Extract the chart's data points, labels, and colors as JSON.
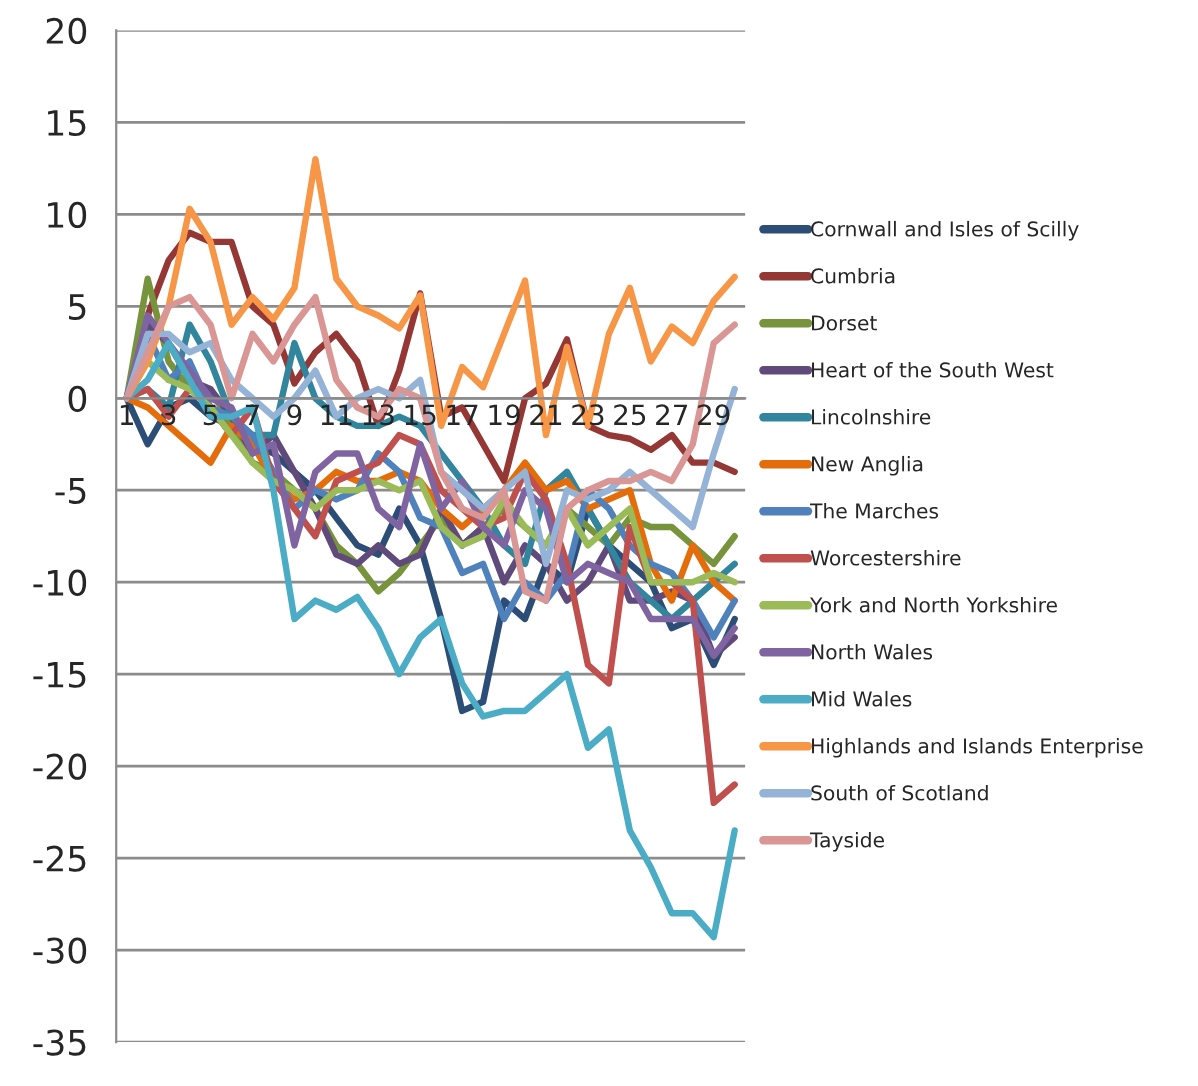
{
  "chart_data": {
    "type": "line",
    "categories": [
      "1",
      null,
      "3",
      null,
      "5",
      null,
      "7",
      null,
      "9",
      null,
      "11",
      null,
      "13",
      null,
      "15",
      null,
      "17",
      null,
      "19",
      null,
      "21",
      null,
      "23",
      null,
      "25",
      null,
      "27",
      null,
      "29",
      null
    ],
    "ylim": [
      -35,
      20
    ],
    "yticks": [
      -35,
      -30,
      -25,
      -20,
      -15,
      -10,
      -5,
      0,
      5,
      10,
      15,
      20
    ],
    "grid": "y",
    "legend": "right",
    "marker": "none",
    "line_style": "solid",
    "series": [
      {
        "name": "Cornwall and Isles of Scilly",
        "color": "#2c4d75",
        "values": [
          0,
          -2.5,
          -0.5,
          0,
          -1,
          -1.5,
          -2.5,
          -3,
          -4,
          -5,
          -6.5,
          -8,
          -8.5,
          -6,
          -8,
          -12,
          -17,
          -16.5,
          -11,
          -12,
          -9,
          -10,
          -6,
          -8,
          -9,
          -10,
          -12.5,
          -12,
          -14.5,
          -12
        ]
      },
      {
        "name": "Cumbria",
        "color": "#953735",
        "values": [
          0,
          4.5,
          7.5,
          9,
          8.5,
          8.5,
          5,
          4,
          0.8,
          2.5,
          3.5,
          2,
          -1.5,
          1.5,
          5.7,
          -1,
          -0.5,
          -2.5,
          -4.5,
          0,
          0.8,
          3.2,
          -1.5,
          -2,
          -2.2,
          -2.8,
          -2,
          -3.5,
          -3.5,
          -4
        ]
      },
      {
        "name": "Dorset",
        "color": "#77933c",
        "values": [
          0,
          6.5,
          2,
          0.5,
          0.5,
          -1.5,
          -3.5,
          -4,
          -5,
          -6,
          -8,
          -9,
          -10.5,
          -9.5,
          -8,
          -6.5,
          -8,
          -7,
          -6,
          -7,
          -8,
          -6,
          -7,
          -8,
          -6.5,
          -7,
          -7,
          -8,
          -9,
          -7.5
        ]
      },
      {
        "name": "Heart of the South West",
        "color": "#604a7b",
        "values": [
          0,
          4,
          3,
          1,
          0.5,
          -1,
          -3,
          -2,
          -4,
          -6,
          -8.5,
          -9,
          -8,
          -9,
          -8.5,
          -6,
          -8,
          -7,
          -10,
          -8,
          -9,
          -11,
          -10,
          -8,
          -11,
          -11,
          -10.5,
          -11,
          -14,
          -13
        ]
      },
      {
        "name": "Lincolnshire",
        "color": "#31859c",
        "values": [
          0,
          0.5,
          -0.5,
          4,
          2,
          -1,
          -2,
          -2,
          3,
          0,
          -1,
          -1.5,
          -1.5,
          -1,
          -1.5,
          -3,
          -4.5,
          -6,
          -8,
          -9,
          -5,
          -4,
          -6,
          -8,
          -10,
          -11,
          -12,
          -11,
          -10,
          -9
        ]
      },
      {
        "name": "New Anglia",
        "color": "#e46c0a",
        "values": [
          0,
          -0.5,
          -1.5,
          -2.5,
          -3.5,
          -1.5,
          -2.5,
          -4.5,
          -5.5,
          -5,
          -4,
          -4.5,
          -4.5,
          -4,
          -4.5,
          -6,
          -7,
          -6,
          -5,
          -3.5,
          -5,
          -4.5,
          -6,
          -5.5,
          -5,
          -9,
          -11,
          -8,
          -10,
          -11
        ]
      },
      {
        "name": "The Marches",
        "color": "#4f81bd",
        "values": [
          0,
          3.5,
          1,
          2,
          -0.5,
          -1,
          -2,
          -4,
          -6,
          -5,
          -5.5,
          -5,
          -3,
          -4,
          -6.5,
          -7,
          -9.5,
          -9,
          -12,
          -10,
          -11,
          -9.5,
          -5,
          -6,
          -8,
          -9,
          -9.5,
          -11,
          -13,
          -11
        ]
      },
      {
        "name": "Worcestershire",
        "color": "#c0504d",
        "values": [
          0,
          0.5,
          -1,
          0.5,
          -0.5,
          -2,
          -0.5,
          -4.5,
          -6,
          -7.5,
          -4.5,
          -4,
          -3.5,
          -2,
          -2.5,
          -5,
          -6,
          -7,
          -6.5,
          -4,
          -5.5,
          -9,
          -14.5,
          -15.5,
          -7,
          -10,
          -10,
          -11,
          -22,
          -21
        ]
      },
      {
        "name": "York and North Yorkshire",
        "color": "#9bbb59",
        "values": [
          0,
          2,
          1,
          0.5,
          -0.5,
          -2,
          -3.5,
          -4.5,
          -5,
          -6,
          -5,
          -5,
          -4.5,
          -5,
          -4.5,
          -7,
          -8,
          -7.5,
          -5.5,
          -7,
          -8,
          -6,
          -8,
          -7,
          -6,
          -10,
          -10,
          -10,
          -9.5,
          -10
        ]
      },
      {
        "name": "North Wales",
        "color": "#8064a2",
        "values": [
          0,
          4.5,
          3,
          1.5,
          0,
          -0.5,
          -3,
          -2.5,
          -8,
          -4,
          -3,
          -3,
          -6,
          -7,
          -2.5,
          -6,
          -4.5,
          -7,
          -8,
          -5,
          -6,
          -10,
          -9,
          -9.5,
          -10,
          -12,
          -12,
          -12,
          -14,
          -12.5
        ]
      },
      {
        "name": "Mid Wales",
        "color": "#4bacc6",
        "values": [
          0,
          1,
          3,
          1,
          -1,
          -1,
          -0.5,
          -5,
          -12,
          -11,
          -11.5,
          -10.8,
          -12.5,
          -15,
          -13,
          -12,
          -15.5,
          -17.3,
          -17,
          -17,
          -16,
          -15,
          -19,
          -18,
          -23.5,
          -25.5,
          -28,
          -28,
          -29.3,
          -23.5
        ]
      },
      {
        "name": "Highlands and Islands Enterprise",
        "color": "#f79646",
        "values": [
          0,
          2,
          5,
          10.3,
          8.5,
          4,
          5.5,
          4.3,
          6,
          13,
          6.5,
          5,
          4.5,
          3.8,
          5.6,
          -1.5,
          1.7,
          0.6,
          3.5,
          6.4,
          -2,
          2.8,
          -1.5,
          3.5,
          6,
          2,
          3.9,
          3,
          5.3,
          6.6
        ]
      },
      {
        "name": "South of Scotland",
        "color": "#95b3d7",
        "values": [
          0,
          3.5,
          3.5,
          2.5,
          3,
          1,
          0,
          -1,
          0,
          1.5,
          -1,
          0,
          0.5,
          0,
          1,
          -4,
          -5,
          -6,
          -5,
          -4,
          -9,
          -5,
          -5.5,
          -5,
          -4,
          -5,
          -6,
          -7,
          -3,
          0.5
        ]
      },
      {
        "name": "Tayside",
        "color": "#d99694",
        "values": [
          0,
          2.5,
          5,
          5.5,
          4,
          0,
          3.5,
          2,
          4,
          5.5,
          1,
          -0.5,
          -1,
          0.5,
          0,
          -4,
          -6,
          -6.5,
          -5,
          -10.5,
          -11,
          -6,
          -5,
          -4.5,
          -4.5,
          -4,
          -4.5,
          -2.5,
          3,
          4
        ]
      }
    ]
  }
}
